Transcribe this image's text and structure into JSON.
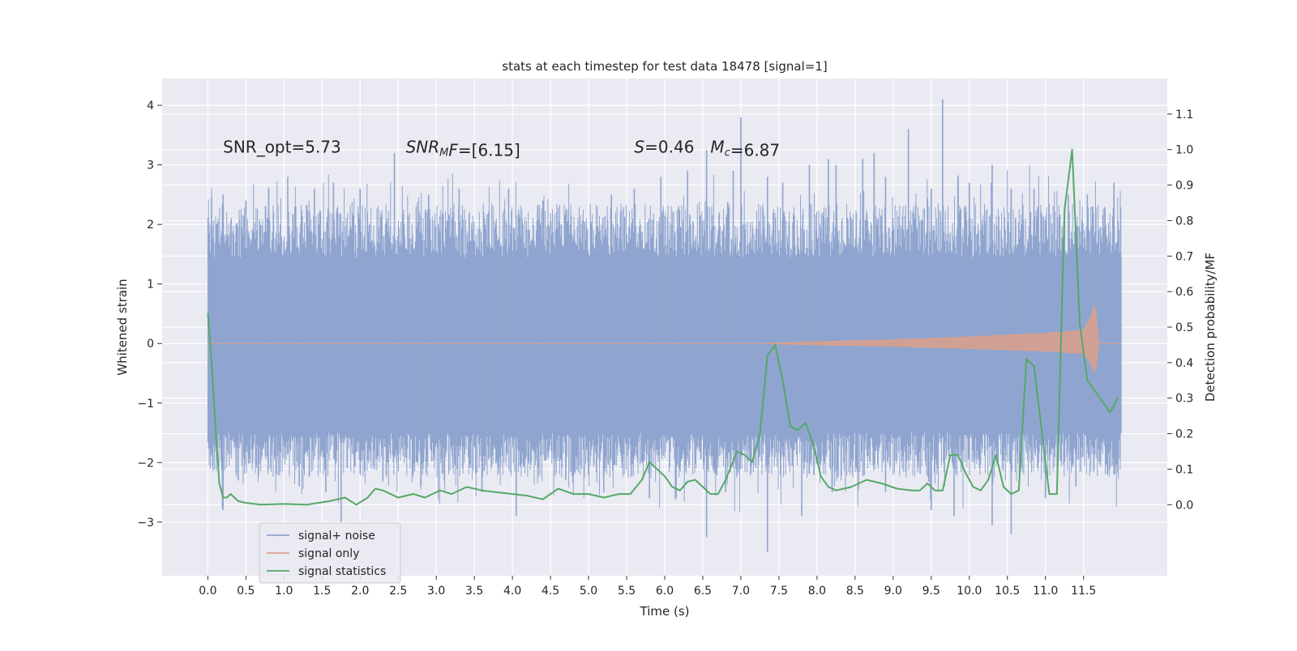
{
  "chart_data": {
    "type": "line",
    "title": "stats at each timestep for test data 18478 [signal=1]",
    "xlabel": "Time (s)",
    "ylabel_left": "Whitened strain",
    "ylabel_right": "Detection probability/MF",
    "grid": true,
    "legend_position": "lower-left",
    "xlim": [
      -0.6,
      12.6
    ],
    "ylim_left": [
      -3.9,
      4.45
    ],
    "ylim_right": [
      -0.2,
      1.2
    ],
    "x_ticks": [
      0.0,
      0.5,
      1.0,
      1.5,
      2.0,
      2.5,
      3.0,
      3.5,
      4.0,
      4.5,
      5.0,
      5.5,
      6.0,
      6.5,
      7.0,
      7.5,
      8.0,
      8.5,
      9.0,
      9.5,
      10.0,
      10.5,
      11.0,
      11.5
    ],
    "x_tick_labels": [
      "0.0",
      "0.5",
      "1.0",
      "1.5",
      "2.0",
      "2.5",
      "3.0",
      "3.5",
      "4.0",
      "4.5",
      "5.0",
      "5.5",
      "6.0",
      "6.5",
      "7.0",
      "7.5",
      "8.0",
      "8.5",
      "9.0",
      "9.5",
      "10.0",
      "10.5",
      "11.0",
      "11.5"
    ],
    "y_left_ticks": [
      -3,
      -2,
      -1,
      0,
      1,
      2,
      3,
      4
    ],
    "y_left_tick_labels": [
      "−3",
      "−2",
      "−1",
      "0",
      "1",
      "2",
      "3",
      "4"
    ],
    "y_right_ticks": [
      0.0,
      0.1,
      0.2,
      0.3,
      0.4,
      0.5,
      0.6,
      0.7,
      0.8,
      0.9,
      1.0,
      1.1
    ],
    "y_right_tick_labels": [
      "0.0",
      "0.1",
      "0.2",
      "0.3",
      "0.4",
      "0.5",
      "0.6",
      "0.7",
      "0.8",
      "0.9",
      "1.0",
      "1.1"
    ],
    "annotations": [
      {
        "name": "snr-opt-annotation",
        "text": "SNR_opt=5.73",
        "x": 0.2,
        "y": 3.3
      },
      {
        "name": "snr-mf-annotation",
        "text": "SNR_MF=[6.15]",
        "x": 2.6,
        "y": 3.3
      },
      {
        "name": "s-mc-annotation",
        "text": "S=0.46   M_c=6.87",
        "x": 5.6,
        "y": 3.3
      }
    ],
    "series": [
      {
        "name": "signal+ noise",
        "color": "#8fa5cf",
        "axis": "left",
        "band": {
          "x_start": 0.0,
          "x_end": 12.0,
          "dense_low": -1.5,
          "dense_high": 1.45
        },
        "spikes": [
          [
            0.05,
            2.45
          ],
          [
            0.2,
            2.5
          ],
          [
            0.5,
            2.4
          ],
          [
            0.8,
            2.6
          ],
          [
            1.05,
            2.8
          ],
          [
            1.4,
            2.6
          ],
          [
            1.65,
            2.7
          ],
          [
            2.0,
            2.6
          ],
          [
            2.45,
            3.2
          ],
          [
            2.9,
            2.5
          ],
          [
            3.3,
            2.6
          ],
          [
            3.95,
            2.6
          ],
          [
            4.4,
            2.4
          ],
          [
            5.3,
            2.5
          ],
          [
            5.6,
            2.6
          ],
          [
            5.95,
            2.8
          ],
          [
            6.3,
            2.9
          ],
          [
            6.55,
            3.25
          ],
          [
            6.9,
            2.9
          ],
          [
            7.0,
            3.8
          ],
          [
            7.35,
            2.8
          ],
          [
            7.55,
            2.7
          ],
          [
            7.9,
            3.0
          ],
          [
            8.15,
            3.1
          ],
          [
            8.25,
            3.0
          ],
          [
            8.6,
            3.1
          ],
          [
            8.75,
            3.2
          ],
          [
            8.9,
            2.8
          ],
          [
            9.2,
            3.6
          ],
          [
            9.5,
            2.6
          ],
          [
            9.65,
            4.1
          ],
          [
            9.85,
            2.8
          ],
          [
            10.0,
            2.7
          ],
          [
            10.3,
            3.0
          ],
          [
            10.55,
            2.6
          ],
          [
            10.85,
            2.6
          ],
          [
            11.3,
            2.5
          ],
          [
            11.55,
            2.5
          ],
          [
            11.9,
            2.7
          ],
          [
            0.2,
            -2.8
          ],
          [
            0.4,
            -2.3
          ],
          [
            0.9,
            -2.2
          ],
          [
            1.2,
            -2.4
          ],
          [
            1.55,
            -2.5
          ],
          [
            1.75,
            -3.0
          ],
          [
            2.3,
            -2.3
          ],
          [
            2.8,
            -2.4
          ],
          [
            3.6,
            -2.5
          ],
          [
            4.05,
            -2.9
          ],
          [
            4.7,
            -2.3
          ],
          [
            5.2,
            -2.5
          ],
          [
            5.8,
            -2.6
          ],
          [
            6.15,
            -2.6
          ],
          [
            6.55,
            -3.25
          ],
          [
            6.8,
            -2.5
          ],
          [
            7.35,
            -3.5
          ],
          [
            7.8,
            -2.9
          ],
          [
            8.2,
            -2.5
          ],
          [
            8.9,
            -2.5
          ],
          [
            9.5,
            -2.8
          ],
          [
            9.8,
            -2.9
          ],
          [
            10.3,
            -3.05
          ],
          [
            10.55,
            -3.2
          ],
          [
            11.0,
            -2.6
          ],
          [
            11.4,
            -2.4
          ],
          [
            11.9,
            -2.2
          ]
        ]
      },
      {
        "name": "signal only",
        "color": "#dd9f8a",
        "axis": "left",
        "chirp": {
          "t_start": 0.0,
          "t_end": 12.0,
          "merger_t": 11.65,
          "amplitude_points": [
            [
              0.0,
              0.0
            ],
            [
              7.3,
              0.0
            ],
            [
              8.0,
              0.03
            ],
            [
              9.0,
              0.06
            ],
            [
              10.0,
              0.11
            ],
            [
              11.0,
              0.17
            ],
            [
              11.5,
              0.22
            ],
            [
              11.6,
              0.45
            ],
            [
              11.65,
              0.68
            ],
            [
              11.7,
              0.0
            ]
          ]
        }
      },
      {
        "name": "signal statistics",
        "color": "#55a868",
        "axis": "right",
        "x": [
          0.0,
          0.05,
          0.1,
          0.15,
          0.2,
          0.25,
          0.3,
          0.4,
          0.5,
          0.7,
          1.0,
          1.3,
          1.6,
          1.8,
          1.95,
          2.1,
          2.2,
          2.3,
          2.5,
          2.7,
          2.85,
          2.95,
          3.05,
          3.2,
          3.4,
          3.6,
          4.0,
          4.2,
          4.4,
          4.6,
          4.8,
          5.0,
          5.2,
          5.4,
          5.55,
          5.7,
          5.8,
          5.9,
          6.0,
          6.1,
          6.2,
          6.3,
          6.4,
          6.5,
          6.6,
          6.7,
          6.8,
          6.95,
          7.05,
          7.15,
          7.25,
          7.35,
          7.45,
          7.55,
          7.65,
          7.75,
          7.85,
          7.95,
          8.05,
          8.15,
          8.25,
          8.45,
          8.65,
          8.85,
          9.05,
          9.25,
          9.35,
          9.45,
          9.55,
          9.65,
          9.75,
          9.85,
          9.95,
          10.05,
          10.15,
          10.25,
          10.35,
          10.45,
          10.55,
          10.65,
          10.75,
          10.85,
          10.95,
          11.05,
          11.15,
          11.25,
          11.35,
          11.45,
          11.55,
          11.65,
          11.75,
          11.85,
          11.95
        ],
        "values": [
          0.54,
          0.4,
          0.22,
          0.06,
          0.02,
          0.02,
          0.03,
          0.01,
          0.005,
          0.0,
          0.002,
          0.0,
          0.01,
          0.02,
          0.0,
          0.02,
          0.045,
          0.04,
          0.02,
          0.03,
          0.02,
          0.03,
          0.04,
          0.03,
          0.05,
          0.04,
          0.03,
          0.025,
          0.015,
          0.045,
          0.03,
          0.03,
          0.02,
          0.03,
          0.03,
          0.07,
          0.12,
          0.1,
          0.08,
          0.05,
          0.04,
          0.065,
          0.07,
          0.05,
          0.03,
          0.03,
          0.07,
          0.15,
          0.14,
          0.12,
          0.2,
          0.42,
          0.45,
          0.35,
          0.22,
          0.21,
          0.23,
          0.17,
          0.08,
          0.05,
          0.04,
          0.05,
          0.07,
          0.06,
          0.045,
          0.04,
          0.04,
          0.06,
          0.04,
          0.04,
          0.14,
          0.14,
          0.09,
          0.05,
          0.04,
          0.07,
          0.14,
          0.05,
          0.03,
          0.04,
          0.41,
          0.39,
          0.21,
          0.03,
          0.03,
          0.83,
          1.0,
          0.51,
          0.35,
          0.32,
          0.29,
          0.26,
          0.3
        ]
      }
    ]
  }
}
